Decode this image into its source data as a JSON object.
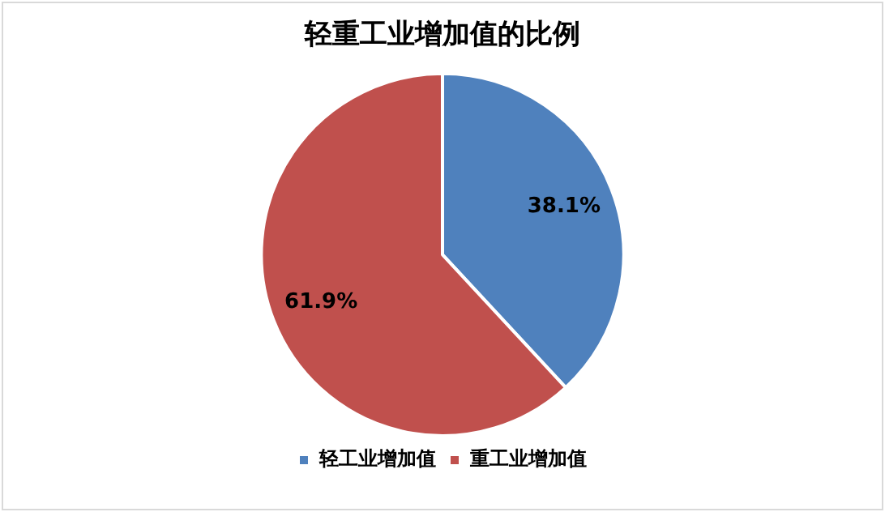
{
  "chart_data": {
    "type": "pie",
    "title": "轻重工业增加值的比例",
    "categories": [
      "轻工业增加值",
      "重工业增加值"
    ],
    "values": [
      38.1,
      61.9
    ],
    "colors": [
      "#4f81bd",
      "#c0504d"
    ],
    "value_labels": [
      "38.1%",
      "61.9%"
    ],
    "legend": "bottom"
  }
}
